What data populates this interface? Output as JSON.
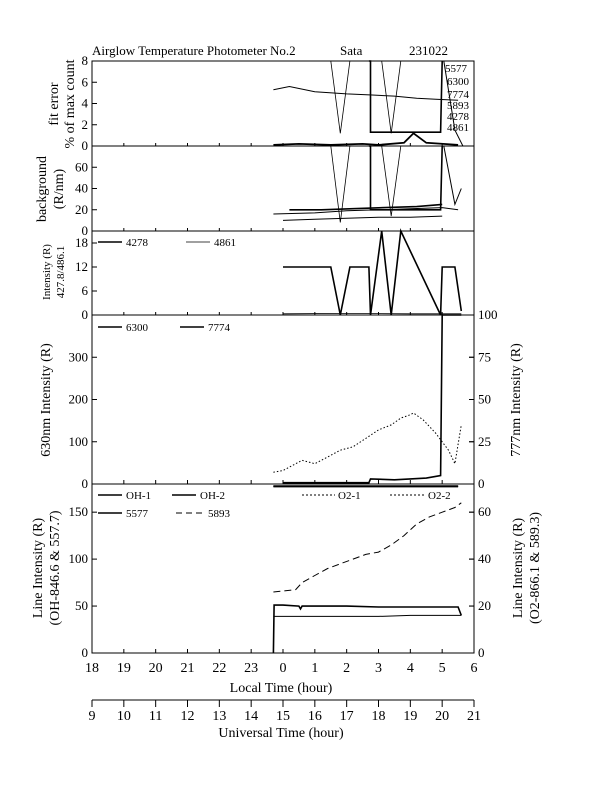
{
  "header": {
    "title": "Airglow Temperature Photometer No.2",
    "station": "Sata",
    "date": "231022"
  },
  "chart_data": [
    {
      "type": "line",
      "panel": "fit-error",
      "ylabel": "fit error % of max count",
      "ylabel_lines": [
        "fit error",
        "% of max count"
      ],
      "ylim": [
        0,
        8
      ],
      "yticks": [
        0,
        2,
        4,
        6,
        8
      ],
      "line_labels": [
        "5577",
        "6300",
        "7774",
        "5893",
        "4278",
        "4861"
      ],
      "series": [
        {
          "key": "fe_upper",
          "x": [
            -0.3,
            0.2,
            1.0,
            2.0,
            2.8,
            3.5,
            4.2,
            4.8,
            5.5
          ],
          "y": [
            5.3,
            5.6,
            5.1,
            4.9,
            4.8,
            4.7,
            4.5,
            4.4,
            4.3
          ]
        },
        {
          "key": "fe_lower",
          "x": [
            -0.3,
            0.5,
            1.5,
            2.5,
            3.0,
            3.8,
            4.1,
            4.5,
            5.5
          ],
          "y": [
            0.1,
            0.2,
            0.1,
            0.2,
            0.1,
            0.3,
            1.2,
            0.3,
            0.1
          ]
        },
        {
          "key": "fe_box",
          "x": [
            2.7,
            2.75,
            2.75,
            4.95,
            5.0
          ],
          "y": [
            8,
            8,
            1.3,
            1.3,
            8
          ]
        },
        {
          "key": "fe_v1",
          "x": [
            1.5,
            1.8,
            2.1
          ],
          "y": [
            8,
            1.2,
            8
          ]
        },
        {
          "key": "fe_v2",
          "x": [
            3.1,
            3.4,
            3.7
          ],
          "y": [
            8,
            1.2,
            8
          ]
        },
        {
          "key": "fe_spike",
          "x": [
            5.05,
            5.4,
            5.65
          ],
          "y": [
            8,
            1.5,
            0
          ]
        }
      ]
    },
    {
      "type": "line",
      "panel": "background",
      "ylabel": "background (R/nm)",
      "ylabel_lines": [
        "background",
        "(R/nm)"
      ],
      "ylim": [
        0,
        80
      ],
      "yticks": [
        0,
        20,
        40,
        60
      ],
      "series": [
        {
          "key": "bg_1",
          "x": [
            -0.3,
            1.0,
            2.0,
            3.0,
            4.0,
            5.0,
            5.5
          ],
          "y": [
            16,
            17,
            19,
            20,
            21,
            22,
            20
          ]
        },
        {
          "key": "bg_2",
          "x": [
            0.2,
            1.2,
            2.2,
            3.2,
            4.2,
            5.0
          ],
          "y": [
            20,
            20,
            21,
            22,
            23,
            25
          ]
        },
        {
          "key": "bg_3",
          "x": [
            0.0,
            1.0,
            2.0,
            3.0,
            4.0,
            5.0
          ],
          "y": [
            10,
            11,
            12,
            13,
            13,
            14
          ]
        },
        {
          "key": "bg_box",
          "x": [
            2.7,
            2.75,
            2.75,
            4.95,
            5.0
          ],
          "y": [
            80,
            80,
            20,
            20,
            80
          ]
        },
        {
          "key": "bg_v1",
          "x": [
            1.5,
            1.8,
            2.1
          ],
          "y": [
            80,
            8,
            80
          ]
        },
        {
          "key": "bg_v2",
          "x": [
            3.1,
            3.4,
            3.7
          ],
          "y": [
            80,
            14,
            80
          ]
        },
        {
          "key": "bg_spike",
          "x": [
            5.05,
            5.4,
            5.6
          ],
          "y": [
            80,
            25,
            40
          ]
        }
      ]
    },
    {
      "type": "line",
      "panel": "427.8/486.1",
      "ylabel": "Intensity (R) 427.8/486.1",
      "ylabel_lines": [
        "Intensity (R)",
        "427.8/486.1"
      ],
      "ylim": [
        0,
        21
      ],
      "yticks": [
        0,
        6,
        12,
        18
      ],
      "series": [
        {
          "name": "4278",
          "key": "s4278",
          "x": [
            0.0,
            1.5,
            1.8,
            2.1,
            2.7,
            2.75,
            3.1,
            3.4,
            3.7,
            4.95,
            5.0,
            5.4,
            5.6
          ],
          "y": [
            12,
            12,
            0,
            12,
            12,
            0,
            21,
            0,
            21,
            0,
            12,
            12,
            1
          ]
        },
        {
          "name": "4861",
          "key": "s4861",
          "x": [
            0.0,
            2.0,
            4.0,
            5.6
          ],
          "y": [
            0.3,
            0.4,
            0.3,
            0.3
          ]
        }
      ]
    },
    {
      "type": "line",
      "panel": "630nm/777nm",
      "ylabel": "630nm Intensity (R)",
      "y2label": "777nm Intensity (R)",
      "ylim": [
        0,
        400
      ],
      "yticks": [
        0,
        100,
        200,
        300
      ],
      "y2lim": [
        0,
        100
      ],
      "y2ticks": [
        0,
        25,
        50,
        75,
        100
      ],
      "series": [
        {
          "name": "6300",
          "key": "s6300",
          "x": [
            0.0,
            2.7,
            2.75,
            3.5,
            4.5,
            4.95,
            5.0,
            5.6
          ],
          "y": [
            3,
            3,
            12,
            10,
            14,
            20,
            400,
            400
          ]
        },
        {
          "name": "7774",
          "key": "s7774",
          "axis": "right",
          "x": [
            -0.3,
            0.0,
            0.3,
            0.6,
            1.0,
            1.4,
            1.8,
            2.2,
            2.6,
            3.0,
            3.4,
            3.7,
            4.0,
            4.1,
            4.4,
            4.8,
            5.2,
            5.4,
            5.6
          ],
          "y": [
            7,
            8,
            11,
            14,
            12,
            16,
            20,
            22,
            27,
            32,
            35,
            39,
            41,
            42,
            38,
            30,
            20,
            12,
            35
          ]
        }
      ]
    },
    {
      "type": "line",
      "panel": "line-intensity",
      "ylabel": "Line Intensity (R) (OH-846.6 & 557.7)",
      "ylabel_lines": [
        "Line Intensity (R)",
        "(OH-846.6 & 557.7)"
      ],
      "y2label": "Line Intensity (R) (O2-866.1 & 589.3)",
      "y2label_lines": [
        "Line Intensity (R)",
        "(O2-866.1 & 589.3)"
      ],
      "ylim": [
        0,
        180
      ],
      "yticks": [
        0,
        50,
        100,
        150
      ],
      "y2lim": [
        0,
        72
      ],
      "y2ticks": [
        0,
        20,
        40,
        60
      ],
      "xlabel": "Local Time (hour)",
      "xlim": [
        18,
        30
      ],
      "xtick_labels": [
        "18",
        "19",
        "20",
        "21",
        "22",
        "23",
        "0",
        "1",
        "2",
        "3",
        "4",
        "5",
        "6"
      ],
      "x2label": "Universal Time (hour)",
      "x2tick_labels": [
        "9",
        "10",
        "11",
        "12",
        "13",
        "14",
        "15",
        "16",
        "17",
        "18",
        "19",
        "20",
        "21"
      ],
      "series": [
        {
          "name": "OH-1",
          "key": "oh1",
          "x": [
            -0.3,
            0.5,
            1.5,
            2.5,
            3.5,
            4.5,
            5.5
          ],
          "y": [
            178,
            178,
            178,
            178,
            178,
            178,
            178
          ]
        },
        {
          "name": "OH-2",
          "key": "oh2",
          "x": [
            -0.3,
            0.5,
            1.5,
            2.5,
            3.5,
            4.5,
            5.5
          ],
          "y": [
            177,
            177,
            177,
            177,
            177,
            177,
            177
          ]
        },
        {
          "name": "O2-1",
          "key": "o21",
          "axis": "right",
          "x": [
            -0.3,
            0.5,
            1.5,
            2.5,
            3.5,
            4.5,
            5.5
          ],
          "y": [
            71,
            71,
            71,
            71,
            71,
            71,
            71
          ]
        },
        {
          "name": "O2-2",
          "key": "o22",
          "axis": "right",
          "x": [
            -0.3,
            0.5,
            1.5,
            2.5,
            3.5,
            4.5,
            5.5
          ],
          "y": [
            71,
            71,
            71,
            71,
            71,
            71,
            71
          ]
        },
        {
          "name": "5577",
          "key": "s5577",
          "x": [
            -0.3,
            -0.28,
            0.0,
            0.5,
            0.55,
            0.6,
            1.0,
            2.0,
            3.0,
            4.0,
            5.0,
            5.5,
            5.6
          ],
          "y": [
            0,
            51,
            51,
            50,
            47,
            50,
            50,
            50,
            49,
            49,
            49,
            49,
            40
          ]
        },
        {
          "name": "OH-2",
          "key": "oh2_low",
          "x": [
            -0.3,
            1.0,
            2.0,
            3.0,
            4.0,
            5.0,
            5.6
          ],
          "y": [
            39,
            39,
            39,
            39,
            40,
            40,
            40
          ]
        },
        {
          "name": "5893",
          "key": "s5893",
          "axis": "right",
          "x": [
            -0.3,
            0.4,
            0.6,
            1.0,
            1.4,
            1.8,
            2.2,
            2.6,
            3.0,
            3.4,
            3.8,
            4.2,
            4.6,
            5.0,
            5.4,
            5.6
          ],
          "y": [
            26,
            27,
            30,
            33,
            36,
            38,
            40,
            42,
            43,
            46,
            50,
            55,
            58,
            60,
            62,
            64
          ]
        }
      ]
    }
  ]
}
